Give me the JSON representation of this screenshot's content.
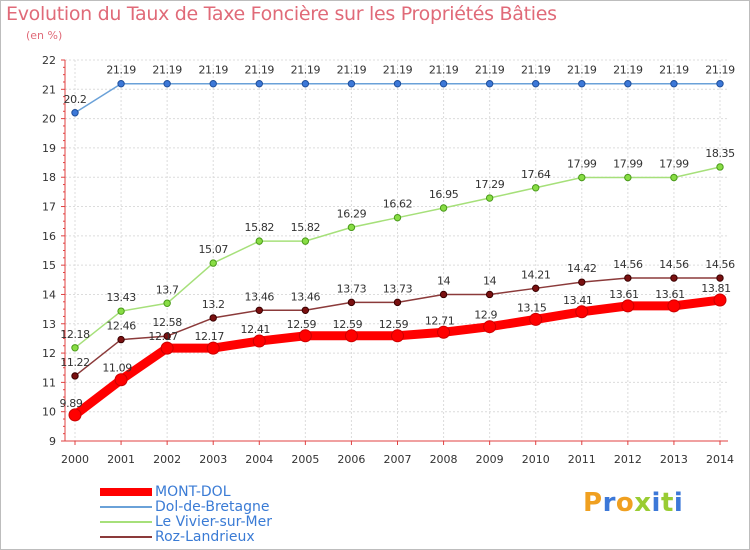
{
  "title": "Evolution du Taux de Taxe Foncière sur les Propriétés Bâties",
  "unit_label": "(en %)",
  "brand": {
    "text": "Proxiti",
    "colors": [
      "#f0a020",
      "#3c78d8",
      "#f0a020",
      "#9c3",
      "#3c78d8",
      "#9c3",
      "#3c78d8"
    ]
  },
  "chart_data": {
    "type": "line",
    "title": "Evolution du Taux de Taxe Foncière sur les Propriétés Bâties",
    "ylabel": "(en %)",
    "xlabel": "",
    "x": [
      "2000",
      "2001",
      "2002",
      "2003",
      "2004",
      "2005",
      "2006",
      "2007",
      "2008",
      "2009",
      "2010",
      "2011",
      "2012",
      "2013",
      "2014"
    ],
    "ylim": [
      9,
      22
    ],
    "yticks": [
      9,
      10,
      11,
      12,
      13,
      14,
      15,
      16,
      17,
      18,
      19,
      20,
      21,
      22
    ],
    "grid": true,
    "legend_position": "bottom-left",
    "series": [
      {
        "name": "MONT-DOL",
        "color": "#ff0000",
        "values": [
          9.89,
          11.09,
          12.17,
          12.17,
          12.41,
          12.59,
          12.59,
          12.59,
          12.71,
          12.9,
          13.15,
          13.41,
          13.61,
          13.61,
          13.81
        ],
        "labels": [
          "9.89",
          "11.09",
          "12.17",
          "12.17",
          "12.41",
          "12.59",
          "12.59",
          "12.59",
          "12.71",
          "12.9",
          "13.15",
          "13.41",
          "13.61",
          "13.61",
          "13.81"
        ]
      },
      {
        "name": "Dol-de-Bretagne",
        "color": "#6aa1d8",
        "values": [
          20.2,
          21.19,
          21.19,
          21.19,
          21.19,
          21.19,
          21.19,
          21.19,
          21.19,
          21.19,
          21.19,
          21.19,
          21.19,
          21.19,
          21.19
        ],
        "labels": [
          "20.2",
          "21.19",
          "21.19",
          "21.19",
          "21.19",
          "21.19",
          "21.19",
          "21.19",
          "21.19",
          "21.19",
          "21.19",
          "21.19",
          "21.19",
          "21.19",
          "21.19"
        ]
      },
      {
        "name": "Le Vivier-sur-Mer",
        "color": "#a6e07a",
        "values": [
          12.18,
          13.43,
          13.7,
          15.07,
          15.82,
          15.82,
          16.29,
          16.62,
          16.95,
          17.29,
          17.64,
          17.99,
          17.99,
          17.99,
          18.35
        ],
        "labels": [
          "12.18",
          "13.43",
          "13.7",
          "15.07",
          "15.82",
          "15.82",
          "16.29",
          "16.62",
          "16.95",
          "17.29",
          "17.64",
          "17.99",
          "17.99",
          "17.99",
          "18.35"
        ]
      },
      {
        "name": "Roz-Landrieux",
        "color": "#8b3a3a",
        "values": [
          11.22,
          12.46,
          12.58,
          13.2,
          13.46,
          13.46,
          13.73,
          13.73,
          14,
          14,
          14.21,
          14.42,
          14.56,
          14.56,
          14.56
        ],
        "labels": [
          "11.22",
          "12.46",
          "12.58",
          "13.2",
          "13.46",
          "13.46",
          "13.73",
          "13.73",
          "14",
          "14",
          "14.21",
          "14.42",
          "14.56",
          "14.56",
          "14.56"
        ]
      }
    ]
  }
}
